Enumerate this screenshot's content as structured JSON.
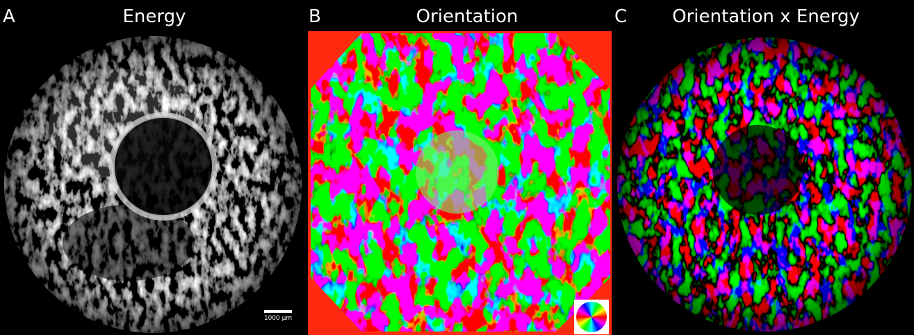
{
  "panels": [
    {
      "letter": "A",
      "title": "Energy"
    },
    {
      "letter": "B",
      "title": "Orientation"
    },
    {
      "letter": "C",
      "title": "Orientation x Energy"
    }
  ],
  "scale_bar": {
    "label": "1000 µm"
  }
}
